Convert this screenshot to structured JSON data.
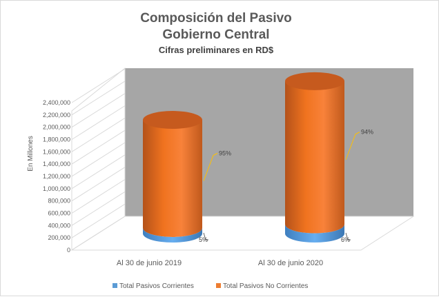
{
  "chart_data": {
    "type": "bar",
    "title": [
      "Composición del Pasivo",
      "Gobierno Central"
    ],
    "subtitle": "Cifras preliminares en RD$",
    "ylabel": "En Millones",
    "ylim": [
      0,
      2400000
    ],
    "ytick_labels": [
      "0",
      "200,000",
      "400,000",
      "600,000",
      "800,000",
      "1,000,000",
      "1,200,000",
      "1,400,000",
      "1,600,000",
      "1,800,000",
      "2,000,000",
      "2,200,000",
      "2,400,000"
    ],
    "categories": [
      "Al 30 de junio 2019",
      "Al 30 de junio 2020"
    ],
    "stacked": true,
    "series": [
      {
        "name": "Total Pasivos Corrientes",
        "values": [
          90000,
          150000
        ],
        "labels": [
          "5%",
          "6%"
        ],
        "color": "#5b9bd5"
      },
      {
        "name": "Total Pasivos No Corrientes",
        "values": [
          1760000,
          2330000
        ],
        "labels": [
          "95%",
          "94%"
        ],
        "color": "#ed7d31"
      }
    ],
    "grid": true,
    "legend": "bottom",
    "style": "3d-cylinder"
  }
}
